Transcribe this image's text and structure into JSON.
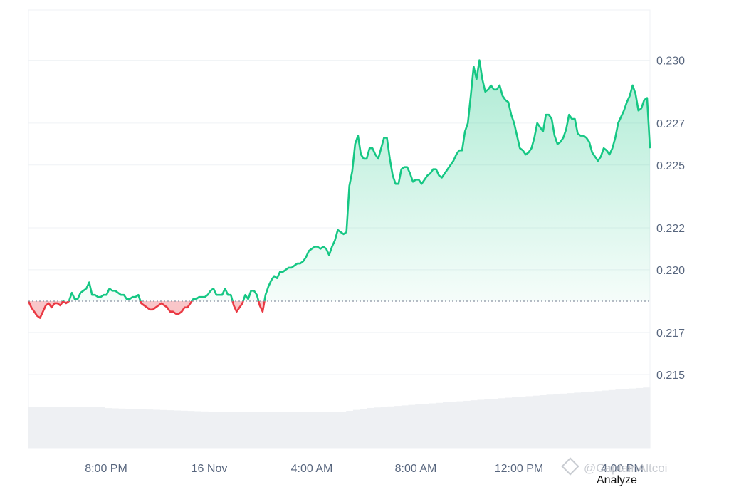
{
  "chart_data": {
    "type": "area",
    "title": "",
    "xlabel": "",
    "ylabel": "",
    "x_ticks": [
      "8:00 PM",
      "16 Nov",
      "4:00 AM",
      "8:00 AM",
      "12:00 PM",
      "4:00 PM"
    ],
    "y_ticks": [
      "0.215",
      "0.217",
      "0.220",
      "0.222",
      "0.225",
      "0.227",
      "0.230"
    ],
    "ylim": [
      0.2115,
      0.2324
    ],
    "baseline": 0.2185,
    "grid": true,
    "colors": {
      "up": "#16c784",
      "down": "#ea3943",
      "volume": "#eef0f3",
      "grid": "#eff2f5"
    },
    "series": [
      {
        "values": [
          0.2185,
          0.2182,
          0.218,
          0.2178,
          0.2177,
          0.218,
          0.2183,
          0.2184,
          0.2182,
          0.2184,
          0.2184,
          0.2183,
          0.2185,
          0.2184,
          0.2185,
          0.2189,
          0.2186,
          0.2186,
          0.2189,
          0.219,
          0.2191,
          0.2194,
          0.2188,
          0.2188,
          0.2187,
          0.2187,
          0.2188,
          0.2188,
          0.2191,
          0.219,
          0.219,
          0.2189,
          0.2188,
          0.2188,
          0.2186,
          0.2186,
          0.2187,
          0.2187,
          0.2188,
          0.2184,
          0.2183,
          0.2182,
          0.2181,
          0.2181,
          0.2182,
          0.2183,
          0.2184,
          0.2183,
          0.2182,
          0.218,
          0.218,
          0.2179,
          0.2179,
          0.218,
          0.2182,
          0.2182,
          0.2184,
          0.2186,
          0.2186,
          0.2187,
          0.2187,
          0.2187,
          0.2188,
          0.219,
          0.2191,
          0.2188,
          0.2188,
          0.2188,
          0.2191,
          0.2188,
          0.2188,
          0.2183,
          0.218,
          0.2182,
          0.2184,
          0.2188,
          0.2186,
          0.219,
          0.219,
          0.2188,
          0.2183,
          0.218,
          0.2188,
          0.2192,
          0.2195,
          0.2197,
          0.2196,
          0.2199,
          0.2199,
          0.22,
          0.2201,
          0.2201,
          0.2202,
          0.2203,
          0.2203,
          0.2204,
          0.2206,
          0.2209,
          0.221,
          0.2211,
          0.2211,
          0.221,
          0.2211,
          0.221,
          0.2207,
          0.2211,
          0.2214,
          0.2219,
          0.2218,
          0.2217,
          0.2218,
          0.224,
          0.2247,
          0.226,
          0.2264,
          0.2255,
          0.2253,
          0.2253,
          0.2258,
          0.2258,
          0.2255,
          0.2253,
          0.2258,
          0.2263,
          0.2263,
          0.2253,
          0.2245,
          0.2241,
          0.2241,
          0.2248,
          0.2249,
          0.2249,
          0.2246,
          0.2242,
          0.2243,
          0.2243,
          0.2241,
          0.2243,
          0.2245,
          0.2246,
          0.2248,
          0.2248,
          0.2245,
          0.2244,
          0.2246,
          0.2248,
          0.225,
          0.2252,
          0.2255,
          0.2257,
          0.2257,
          0.2266,
          0.227,
          0.2283,
          0.2297,
          0.2291,
          0.23,
          0.2291,
          0.2285,
          0.2286,
          0.2288,
          0.2286,
          0.2286,
          0.2288,
          0.2283,
          0.2281,
          0.228,
          0.2274,
          0.227,
          0.2264,
          0.2258,
          0.2257,
          0.2255,
          0.2256,
          0.2258,
          0.2263,
          0.227,
          0.2268,
          0.2266,
          0.2274,
          0.2274,
          0.2272,
          0.2264,
          0.226,
          0.2261,
          0.2263,
          0.2267,
          0.2274,
          0.2272,
          0.2272,
          0.2265,
          0.2264,
          0.2264,
          0.2263,
          0.2261,
          0.2256,
          0.2254,
          0.2252,
          0.2254,
          0.2258,
          0.2257,
          0.2255,
          0.2258,
          0.2263,
          0.227,
          0.2273,
          0.2276,
          0.228,
          0.2283,
          0.2288,
          0.2284,
          0.2276,
          0.2277,
          0.2281,
          0.2282,
          0.2258
        ]
      }
    ]
  },
  "watermark": "@CaptainAltcoi",
  "footer_label": "Analyze"
}
